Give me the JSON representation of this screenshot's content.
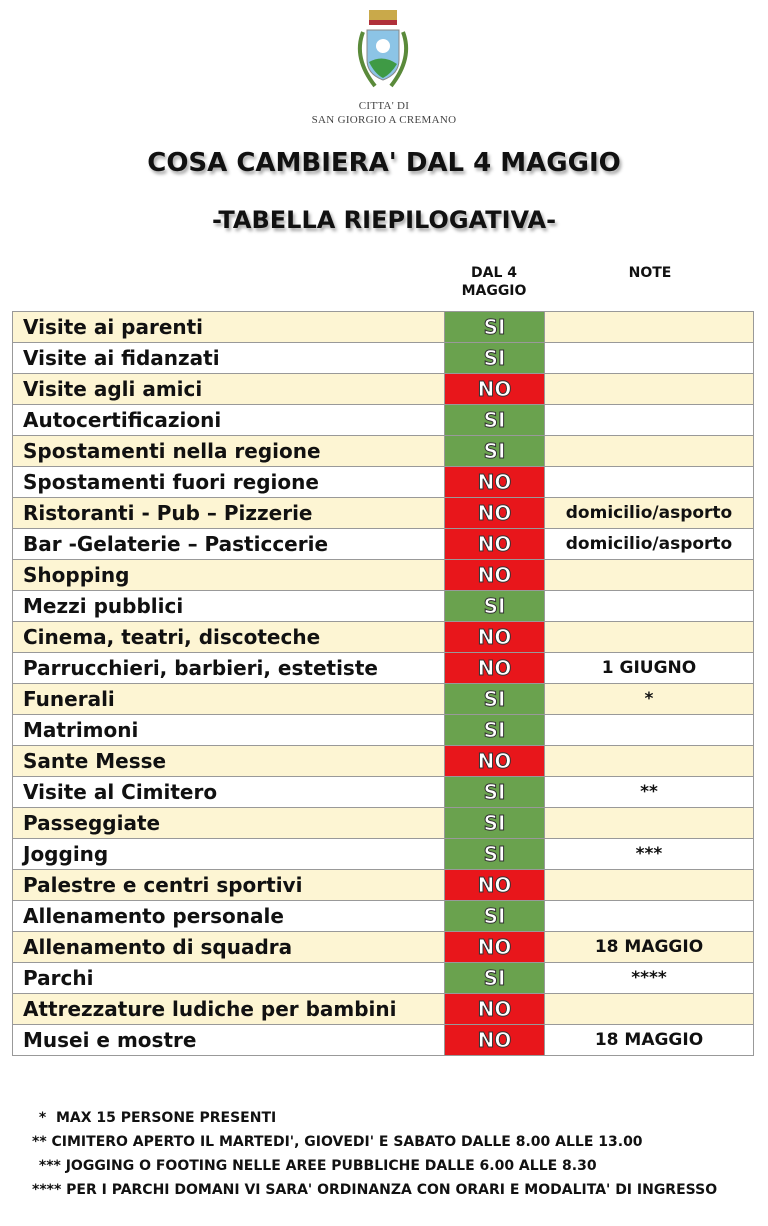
{
  "header": {
    "city_line1": "CITTA' DI",
    "city_line2": "SAN GIORGIO A CREMANO",
    "title": "COSA CAMBIERA' DAL 4 MAGGIO",
    "subtitle": "-TABELLA RIEPILOGATIVA-"
  },
  "columns": {
    "status": "DAL 4 MAGGIO",
    "notes": "NOTE"
  },
  "colors": {
    "si": "#6aa24e",
    "no": "#e8161b",
    "row_alt": "#fdf5d3"
  },
  "rows": [
    {
      "label": "Visite ai parenti",
      "status": "SI",
      "note": ""
    },
    {
      "label": "Visite ai fidanzati",
      "status": "SI",
      "note": ""
    },
    {
      "label": "Visite agli amici",
      "status": "NO",
      "note": ""
    },
    {
      "label": "Autocertificazioni",
      "status": "SI",
      "note": ""
    },
    {
      "label": "Spostamenti nella regione",
      "status": "SI",
      "note": ""
    },
    {
      "label": "Spostamenti fuori regione",
      "status": "NO",
      "note": ""
    },
    {
      "label": "Ristoranti - Pub – Pizzerie",
      "status": "NO",
      "note": "domicilio/asporto"
    },
    {
      "label": "Bar -Gelaterie – Pasticcerie",
      "status": "NO",
      "note": "domicilio/asporto"
    },
    {
      "label": "Shopping",
      "status": "NO",
      "note": ""
    },
    {
      "label": "Mezzi pubblici",
      "status": "SI",
      "note": ""
    },
    {
      "label": "Cinema, teatri, discoteche",
      "status": "NO",
      "note": ""
    },
    {
      "label": "Parrucchieri, barbieri, estetiste",
      "status": "NO",
      "note": "1 GIUGNO"
    },
    {
      "label": "Funerali",
      "status": "SI",
      "note": "*"
    },
    {
      "label": "Matrimoni",
      "status": "SI",
      "note": ""
    },
    {
      "label": "Sante Messe",
      "status": "NO",
      "note": ""
    },
    {
      "label": "Visite al Cimitero",
      "status": "SI",
      "note": "**"
    },
    {
      "label": "Passeggiate",
      "status": "SI",
      "note": ""
    },
    {
      "label": "Jogging",
      "status": "SI",
      "note": "***"
    },
    {
      "label": "Palestre e centri sportivi",
      "status": "NO",
      "note": ""
    },
    {
      "label": "Allenamento personale",
      "status": "SI",
      "note": ""
    },
    {
      "label": "Allenamento di squadra",
      "status": "NO",
      "note": "18 MAGGIO"
    },
    {
      "label": "Parchi",
      "status": "SI",
      "note": "****"
    },
    {
      "label": "Attrezzature ludiche per bambini",
      "status": "NO",
      "note": ""
    },
    {
      "label": "Musei e mostre",
      "status": "NO",
      "note": "18 MAGGIO"
    }
  ],
  "footnotes": [
    " *  MAX 15 PERSONE PRESENTI",
    "** CIMITERO APERTO IL MARTEDI', GIOVEDI' E SABATO DALLE 8.00 ALLE 13.00",
    " *** JOGGING O FOOTING NELLE AREE PUBBLICHE DALLE 6.00 ALLE 8.30",
    "**** PER I PARCHI DOMANI VI SARA' ORDINANZA CON ORARI E MODALITA' DI INGRESSO"
  ]
}
